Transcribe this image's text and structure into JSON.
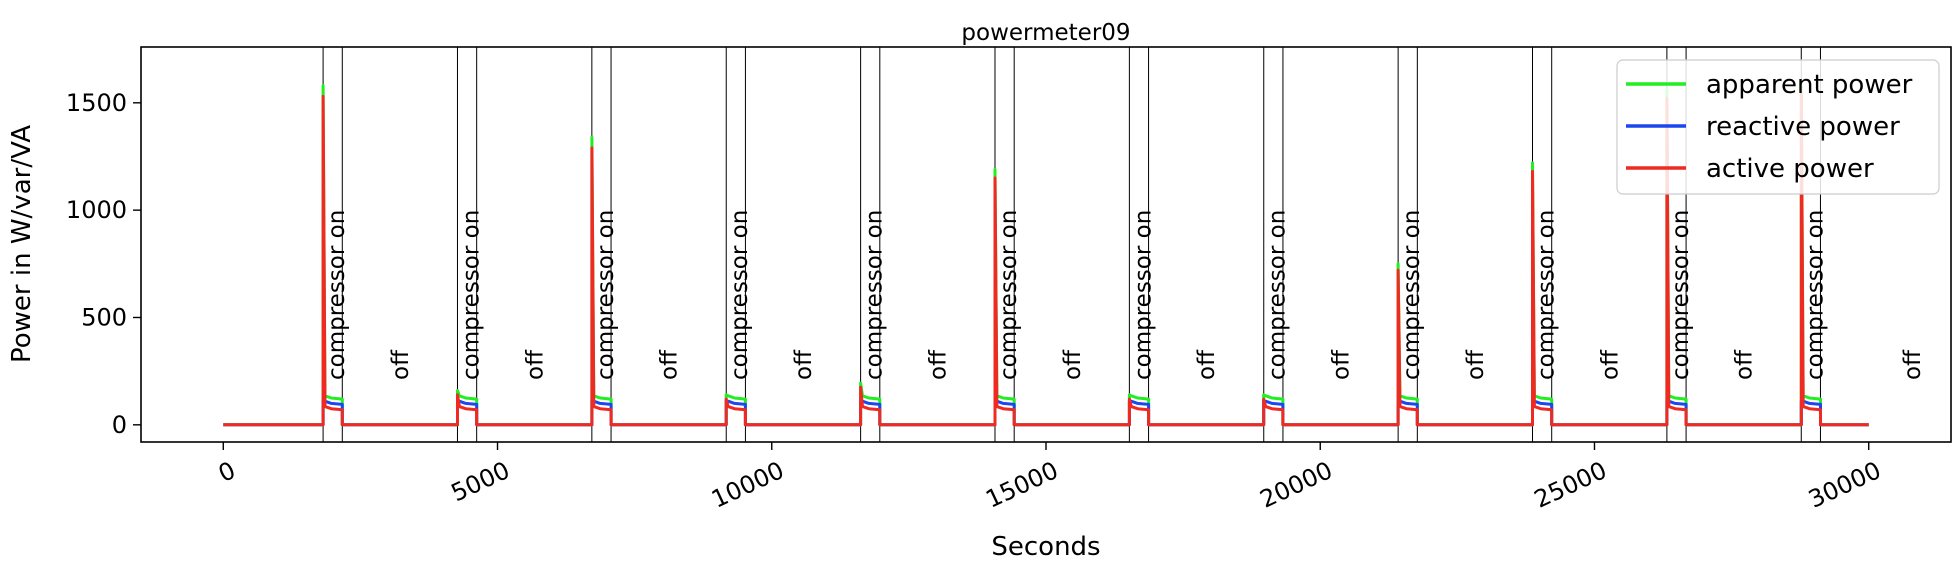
{
  "chart_data": {
    "type": "line",
    "title": "powermeter09",
    "xlabel": "Seconds",
    "ylabel": "Power in W/var/VA",
    "xlim": [
      -1500,
      31500
    ],
    "ylim": [
      -80,
      1760
    ],
    "xticks": [
      0,
      5000,
      10000,
      15000,
      20000,
      25000,
      30000
    ],
    "xtick_labels": [
      "0",
      "5000",
      "10000",
      "15000",
      "20000",
      "25000",
      "30000"
    ],
    "yticks": [
      0,
      500,
      1000,
      1500
    ],
    "ytick_labels": [
      "0",
      "500",
      "1000",
      "1500"
    ],
    "x_range": [
      0,
      30000
    ],
    "grid": false,
    "legend_position": "top-right",
    "series": [
      {
        "name": "apparent power",
        "color": "#22ee22",
        "on_level": 125,
        "spikes": [
          1580,
          160,
          1340,
          140,
          195,
          1190,
          140,
          140,
          750,
          1220,
          1560,
          1580
        ]
      },
      {
        "name": "reactive power",
        "color": "#1c47ee",
        "on_level": 100,
        "spikes": [
          120,
          110,
          115,
          110,
          105,
          110,
          110,
          110,
          105,
          110,
          110,
          110
        ]
      },
      {
        "name": "active power",
        "color": "#ee2a22",
        "on_level": 75,
        "spikes": [
          1530,
          140,
          1290,
          120,
          175,
          1150,
          120,
          120,
          720,
          1180,
          1520,
          1540
        ]
      }
    ],
    "cycles": [
      {
        "on": 1820,
        "off": 2170
      },
      {
        "on": 4270,
        "off": 4620
      },
      {
        "on": 6720,
        "off": 7070
      },
      {
        "on": 9170,
        "off": 9520
      },
      {
        "on": 11620,
        "off": 11970
      },
      {
        "on": 14070,
        "off": 14420
      },
      {
        "on": 16520,
        "off": 16870
      },
      {
        "on": 18970,
        "off": 19320
      },
      {
        "on": 21420,
        "off": 21770
      },
      {
        "on": 23870,
        "off": 24220
      },
      {
        "on": 26320,
        "off": 26670
      },
      {
        "on": 28770,
        "off": 29120
      }
    ],
    "annotations": {
      "on_label": "compressor on",
      "off_label": "off"
    }
  }
}
